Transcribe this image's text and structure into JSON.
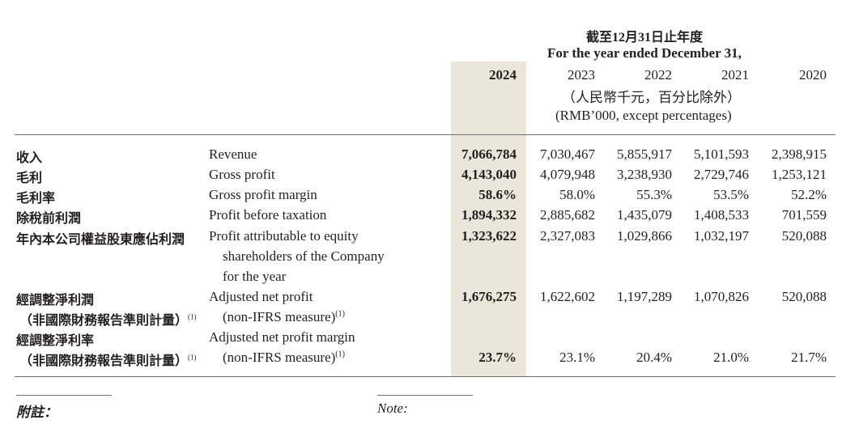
{
  "header": {
    "period_cn": "截至12月31日止年度",
    "period_en": "For the year ended December 31,",
    "years": [
      "2024",
      "2023",
      "2022",
      "2021",
      "2020"
    ],
    "unit_cn": "（人民幣千元，百分比除外）",
    "unit_en": "(RMB’000, except percentages)"
  },
  "rows": [
    {
      "cn": "收入",
      "en": "Revenue",
      "values": [
        "7,066,784",
        "7,030,467",
        "5,855,917",
        "5,101,593",
        "2,398,915"
      ]
    },
    {
      "cn": "毛利",
      "en": "Gross profit",
      "values": [
        "4,143,040",
        "4,079,948",
        "3,238,930",
        "2,729,746",
        "1,253,121"
      ]
    },
    {
      "cn": "毛利率",
      "en": "Gross profit margin",
      "values": [
        "58.6%",
        "58.0%",
        "55.3%",
        "53.5%",
        "52.2%"
      ]
    },
    {
      "cn": "除稅前利潤",
      "en": "Profit before taxation",
      "values": [
        "1,894,332",
        "2,885,682",
        "1,435,079",
        "1,408,533",
        "701,559"
      ]
    },
    {
      "cn": "年內本公司權益股東應佔利潤",
      "en": [
        "Profit attributable to equity",
        "shareholders of the Company",
        "for the year"
      ],
      "values": [
        "1,323,622",
        "2,327,083",
        "1,029,866",
        "1,032,197",
        "520,088"
      ]
    },
    {
      "cn": [
        "經調整淨利潤",
        "（非國際財務報告準則計量）"
      ],
      "en": [
        "Adjusted net profit",
        "(non-IFRS measure)"
      ],
      "footnote": "(1)",
      "values": [
        "1,676,275",
        "1,622,602",
        "1,197,289",
        "1,070,826",
        "520,088"
      ]
    },
    {
      "cn": [
        "經調整淨利率",
        "（非國際財務報告準則計量）"
      ],
      "en": [
        "Adjusted net profit margin",
        "(non-IFRS measure)"
      ],
      "footnote": "(1)",
      "values": [
        "23.7%",
        "23.1%",
        "20.4%",
        "21.0%",
        "21.7%"
      ]
    }
  ],
  "footer": {
    "note_cn": "附註：",
    "note_en": "Note:"
  }
}
